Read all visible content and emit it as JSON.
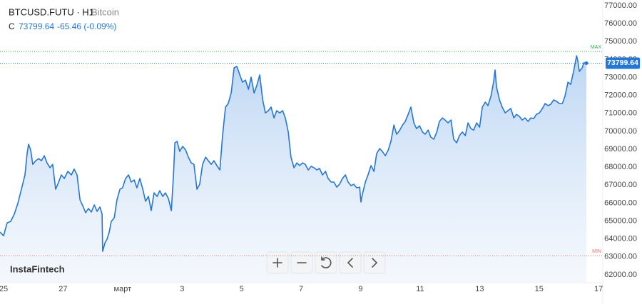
{
  "chart_data": {
    "type": "line",
    "title": "BTCUSD.FUTU · H1",
    "subtitle": "Bitcoin",
    "price_prefix": "C",
    "last": 73799.64,
    "change": "-65.46 (-0.09%)",
    "watermark": "InstaFintech",
    "color": "#2577d3",
    "grid": false,
    "x": [
      -0.12,
      0,
      0.12,
      0.24,
      0.36,
      0.48,
      0.6,
      0.72,
      0.79,
      0.84,
      0.91,
      0.98,
      1.08,
      1.18,
      1.27,
      1.37,
      1.46,
      1.56,
      1.65,
      1.75,
      1.85,
      1.94,
      2.04,
      2.16,
      2.28,
      2.37,
      2.47,
      2.57,
      2.66,
      2.76,
      2.85,
      2.95,
      3.05,
      3.14,
      3.24,
      3.31,
      3.33,
      3.41,
      3.48,
      3.55,
      3.62,
      3.72,
      3.81,
      3.91,
      4.0,
      4.1,
      4.2,
      4.29,
      4.39,
      4.48,
      4.58,
      4.68,
      4.77,
      4.87,
      4.96,
      5.06,
      5.16,
      5.25,
      5.35,
      5.44,
      5.54,
      5.64,
      5.71,
      5.76,
      5.83,
      5.92,
      6.02,
      6.12,
      6.21,
      6.31,
      6.4,
      6.5,
      6.59,
      6.69,
      6.79,
      6.88,
      6.98,
      7.07,
      7.17,
      7.27,
      7.36,
      7.46,
      7.55,
      7.65,
      7.75,
      7.84,
      7.94,
      8.03,
      8.13,
      8.23,
      8.32,
      8.42,
      8.51,
      8.61,
      8.71,
      8.8,
      8.9,
      8.99,
      9.09,
      9.18,
      9.28,
      9.38,
      9.47,
      9.57,
      9.66,
      9.76,
      9.86,
      9.95,
      10.05,
      10.14,
      10.24,
      10.34,
      10.43,
      10.53,
      10.62,
      10.72,
      10.82,
      10.91,
      11.01,
      11.1,
      11.2,
      11.29,
      11.39,
      11.49,
      11.58,
      11.68,
      11.77,
      11.87,
      11.97,
      12.01,
      12.06,
      12.16,
      12.25,
      12.35,
      12.45,
      12.54,
      12.64,
      12.73,
      12.83,
      12.93,
      13.02,
      13.12,
      13.21,
      13.31,
      13.41,
      13.5,
      13.6,
      13.69,
      13.79,
      13.88,
      13.98,
      14.08,
      14.17,
      14.27,
      14.36,
      14.46,
      14.56,
      14.65,
      14.75,
      14.84,
      14.94,
      15.04,
      15.13,
      15.23,
      15.32,
      15.42,
      15.52,
      15.61,
      15.71,
      15.8,
      15.9,
      16.0,
      16.09,
      16.19,
      16.28,
      16.38,
      16.47,
      16.52,
      16.57,
      16.67,
      16.76,
      16.86,
      16.95,
      17.05,
      17.15,
      17.24,
      17.34,
      17.43,
      17.53,
      17.63,
      17.72,
      17.82,
      17.91,
      18.01,
      18.11,
      18.2,
      18.3,
      18.39,
      18.49,
      18.59,
      18.68,
      18.78,
      18.87,
      18.97,
      19.06,
      19.16,
      19.26,
      19.3,
      19.35,
      19.45,
      19.5,
      19.59
    ],
    "values": [
      64380,
      64180,
      64900,
      64980,
      65380,
      65980,
      66770,
      67570,
      68760,
      69280,
      68960,
      68160,
      68360,
      68480,
      68360,
      68640,
      68240,
      67970,
      68160,
      66770,
      67170,
      67570,
      67370,
      67770,
      67570,
      67890,
      67570,
      66170,
      65860,
      65460,
      65700,
      65500,
      65900,
      65540,
      65780,
      65380,
      63310,
      63790,
      63990,
      64380,
      64980,
      65180,
      66170,
      66770,
      66850,
      67370,
      67570,
      67170,
      67290,
      66850,
      67370,
      66770,
      66100,
      66370,
      65580,
      66570,
      66370,
      66690,
      66370,
      66570,
      66250,
      65580,
      67570,
      69360,
      69440,
      68880,
      69160,
      68960,
      68560,
      68240,
      68160,
      66770,
      67050,
      68160,
      68560,
      68360,
      68160,
      68360,
      68090,
      67850,
      69760,
      71350,
      71550,
      72140,
      73540,
      73620,
      73140,
      72740,
      72860,
      72340,
      73020,
      72140,
      72540,
      73140,
      71750,
      71030,
      71150,
      71350,
      70750,
      71150,
      71030,
      71150,
      70750,
      69960,
      68560,
      67970,
      68240,
      68090,
      68240,
      68160,
      67850,
      68050,
      67970,
      67850,
      67930,
      67570,
      67770,
      67370,
      67170,
      67170,
      66890,
      67050,
      67370,
      67570,
      67170,
      66970,
      67050,
      66850,
      66890,
      66060,
      66490,
      67170,
      67570,
      68090,
      67770,
      68760,
      69040,
      68880,
      68640,
      68960,
      69440,
      70350,
      69840,
      70040,
      70350,
      70550,
      70950,
      71350,
      70470,
      70150,
      70310,
      69960,
      69840,
      70070,
      69680,
      69560,
      69960,
      70550,
      70750,
      70630,
      70470,
      70630,
      69560,
      69360,
      69760,
      69960,
      69760,
      70470,
      70150,
      70070,
      70470,
      70230,
      71350,
      71630,
      71430,
      71950,
      72740,
      73420,
      72460,
      71750,
      71350,
      71030,
      71150,
      71270,
      70750,
      70950,
      70830,
      70630,
      70750,
      70550,
      70750,
      70710,
      70950,
      71030,
      71270,
      71550,
      71430,
      71510,
      71750,
      71670,
      71550,
      71550,
      71950,
      72740,
      72620,
      73340,
      74210,
      73940,
      73340,
      73540,
      73820,
      73799.64
    ],
    "xlim": [
      -0.12,
      20.14
    ],
    "xticks": [
      {
        "value": 0,
        "label": "25"
      },
      {
        "value": 2,
        "label": "27"
      },
      {
        "value": 4,
        "label": "март"
      },
      {
        "value": 6,
        "label": "3"
      },
      {
        "value": 8,
        "label": "5"
      },
      {
        "value": 10,
        "label": "7"
      },
      {
        "value": 12,
        "label": "9"
      },
      {
        "value": 14,
        "label": "11"
      },
      {
        "value": 16,
        "label": "13"
      },
      {
        "value": 18,
        "label": "15"
      },
      {
        "value": 20,
        "label": "17"
      }
    ],
    "ylim": [
      61600,
      77320
    ],
    "yticks": [
      {
        "value": 62000,
        "label": "62000.00"
      },
      {
        "value": 63000,
        "label": "63000.00"
      },
      {
        "value": 64000,
        "label": "64000.00"
      },
      {
        "value": 65000,
        "label": "65000.00"
      },
      {
        "value": 66000,
        "label": "66000.00"
      },
      {
        "value": 67000,
        "label": "67000.00"
      },
      {
        "value": 68000,
        "label": "68000.00"
      },
      {
        "value": 69000,
        "label": "69000.00"
      },
      {
        "value": 70000,
        "label": "70000.00"
      },
      {
        "value": 71000,
        "label": "71000.00"
      },
      {
        "value": 72000,
        "label": "72000.00"
      },
      {
        "value": 73000,
        "label": "73000.00"
      },
      {
        "value": 74000,
        "label": "74000.00"
      },
      {
        "value": 75000,
        "label": "75000.00"
      },
      {
        "value": 76000,
        "label": "76000.00"
      },
      {
        "value": 77000,
        "label": "77000.00"
      }
    ],
    "annotations": [
      {
        "label": "MAX",
        "value": 74450,
        "color": "#3aa757"
      },
      {
        "label": "MIN",
        "value": 63070,
        "color": "#e57373"
      }
    ]
  }
}
